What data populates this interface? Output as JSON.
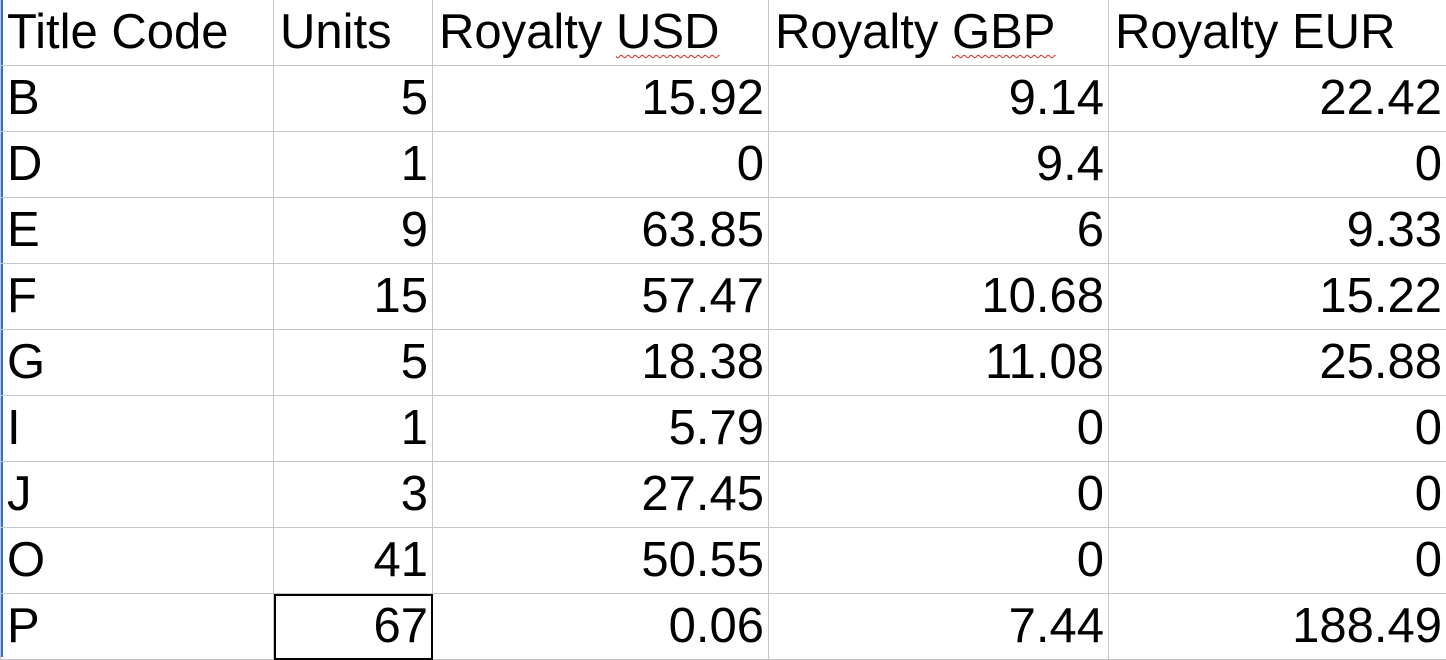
{
  "sheet": {
    "headers": {
      "title_code": "Title Code",
      "units": "Units",
      "royalty_usd_prefix": "Royalty ",
      "royalty_usd_flagged": "USD",
      "royalty_gbp_prefix": "Royalty ",
      "royalty_gbp_flagged": "GBP",
      "royalty_eur": "Royalty EUR"
    },
    "rows": [
      {
        "title_code": "B",
        "units": "5",
        "usd": "15.92",
        "gbp": "9.14",
        "eur": "22.42"
      },
      {
        "title_code": "D",
        "units": "1",
        "usd": "0",
        "gbp": "9.4",
        "eur": "0"
      },
      {
        "title_code": "E",
        "units": "9",
        "usd": "63.85",
        "gbp": "6",
        "eur": "9.33"
      },
      {
        "title_code": "F",
        "units": "15",
        "usd": "57.47",
        "gbp": "10.68",
        "eur": "15.22"
      },
      {
        "title_code": "G",
        "units": "5",
        "usd": "18.38",
        "gbp": "11.08",
        "eur": "25.88"
      },
      {
        "title_code": "I",
        "units": "1",
        "usd": "5.79",
        "gbp": "0",
        "eur": "0"
      },
      {
        "title_code": "J",
        "units": "3",
        "usd": "27.45",
        "gbp": "0",
        "eur": "0"
      },
      {
        "title_code": "O",
        "units": "41",
        "usd": "50.55",
        "gbp": "0",
        "eur": "0"
      },
      {
        "title_code": "P",
        "units": "67",
        "usd": "0.06",
        "gbp": "7.44",
        "eur": "188.49"
      }
    ],
    "colors": {
      "gridline": "#c6c6c6",
      "spellcheck_underline": "#e0281e",
      "row_selection_indicator": "#2a6fd6",
      "active_cell_border": "#000000"
    }
  }
}
